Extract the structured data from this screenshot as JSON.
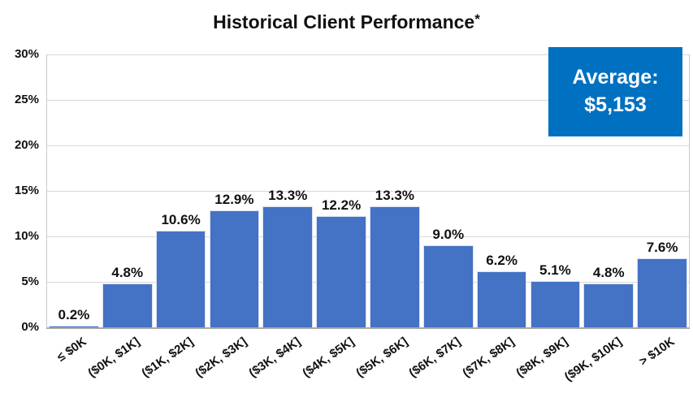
{
  "title": "Historical Client Performance",
  "title_asterisk": "*",
  "average_box": {
    "label": "Average:",
    "value": "$5,153",
    "bg_color": "#0071C0",
    "text_color": "#FFFFFF"
  },
  "chart_data": {
    "type": "bar",
    "title": "Historical Client Performance*",
    "categories": [
      "≤ $0K",
      "($0K, $1K]",
      "($1K, $2K]",
      "($2K, $3K]",
      "($3K, $4K]",
      "($4K, $5K]",
      "($5K, $6K]",
      "($6K, $7K]",
      "($7K, $8K]",
      "($8K, $9K]",
      "($9K, $10K]",
      "> $10K"
    ],
    "values": [
      0.2,
      4.8,
      10.6,
      12.9,
      13.3,
      12.2,
      13.3,
      9.0,
      6.2,
      5.1,
      4.8,
      7.6
    ],
    "data_labels": [
      "0.2%",
      "4.8%",
      "10.6%",
      "12.9%",
      "13.3%",
      "12.2%",
      "13.3%",
      "9.0%",
      "6.2%",
      "5.1%",
      "4.8%",
      "7.6%"
    ],
    "xlabel": "",
    "ylabel": "",
    "ylim": [
      0,
      30
    ],
    "yticks": [
      0,
      5,
      10,
      15,
      20,
      25,
      30
    ],
    "ytick_labels": [
      "0%",
      "5%",
      "10%",
      "15%",
      "20%",
      "25%",
      "30%"
    ],
    "legend": false,
    "grid": true,
    "bar_color": "#4472C4",
    "gridline_color": "#D8D8D8",
    "annotation": "Average: $5,153"
  }
}
